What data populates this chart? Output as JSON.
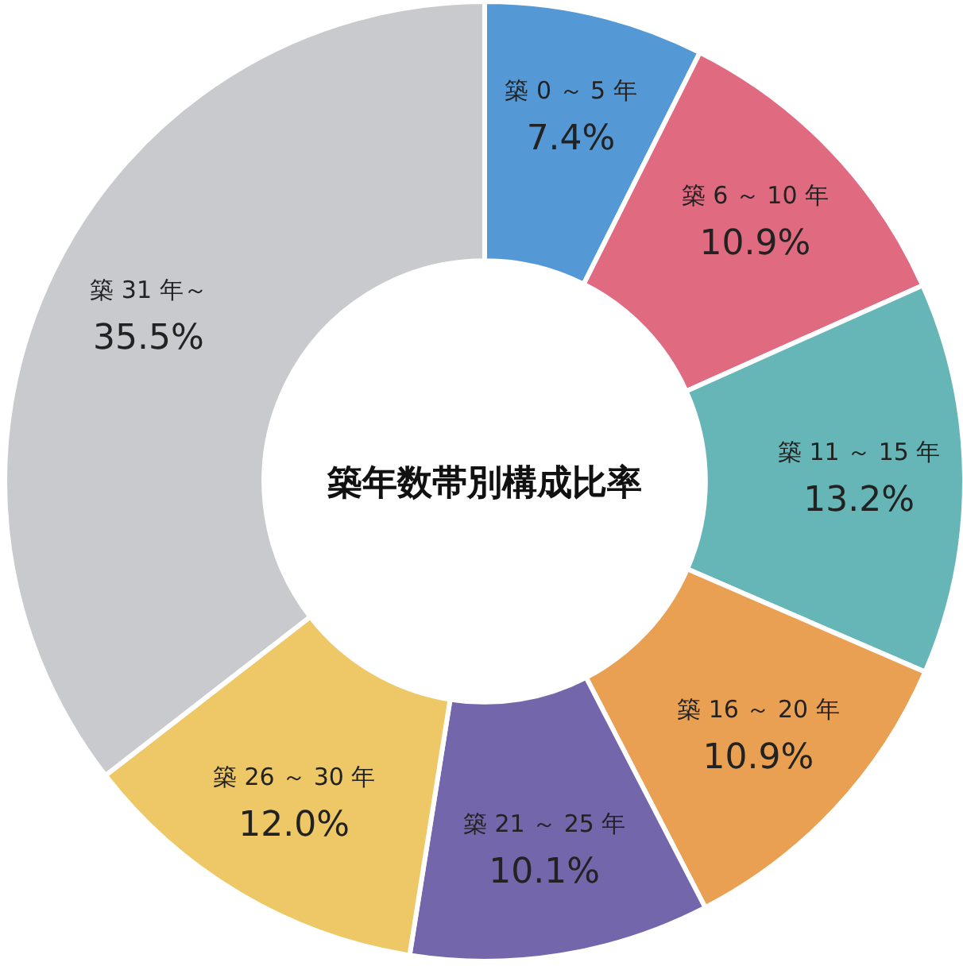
{
  "chart_data": {
    "type": "donut",
    "title": "築年数帯別構成比率",
    "categories": [
      "築 0 ～ 5 年",
      "築 6 ～ 10 年",
      "築 11 ～ 15 年",
      "築 16 ～ 20 年",
      "築 21 ～ 25 年",
      "築 26 ～ 30 年",
      "築 31 年～"
    ],
    "values": [
      7.4,
      10.9,
      13.2,
      10.9,
      10.1,
      12.0,
      35.5
    ],
    "value_labels": [
      "7.4%",
      "10.9%",
      "13.2%",
      "10.9%",
      "10.1%",
      "12.0%",
      "35.5%"
    ],
    "colors": [
      "#5499d6",
      "#e06b80",
      "#67b6b7",
      "#e9a052",
      "#7466ab",
      "#eec866",
      "#c9cacd"
    ]
  }
}
